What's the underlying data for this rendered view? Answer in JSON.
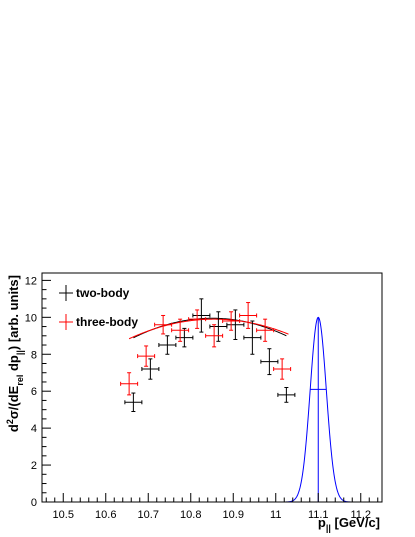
{
  "chart_data": {
    "type": "scatter",
    "xlabel_main": "p",
    "xlabel_sub": "||",
    "xlabel_unit": " [GeV/c]",
    "ylabel_parts": {
      "a": "d",
      "b": "2",
      "c": "σ/(dE",
      "d": "rel",
      "e": " dp",
      "f": "||",
      "g": ") [arb. units]"
    },
    "xlim": [
      10.45,
      11.25
    ],
    "ylim": [
      0,
      12.4
    ],
    "x_ticks": [
      10.5,
      10.6,
      10.7,
      10.8,
      10.9,
      11.0,
      11.1,
      11.2
    ],
    "x_tick_labels": [
      "10.5",
      "10.6",
      "10.7",
      "10.8",
      "10.9",
      "11",
      "11.1",
      "11.2"
    ],
    "y_ticks": [
      0,
      2,
      4,
      6,
      8,
      10,
      12
    ],
    "y_tick_labels": [
      "0",
      "2",
      "4",
      "6",
      "8",
      "10",
      "12"
    ],
    "legend": {
      "position": "top-left"
    },
    "series": [
      {
        "name": "two-body",
        "color": "#000000",
        "x": [
          10.665,
          10.705,
          10.745,
          10.785,
          10.825,
          10.865,
          10.905,
          10.945,
          10.985,
          11.025
        ],
        "y": [
          5.4,
          7.2,
          8.5,
          8.9,
          10.1,
          9.5,
          9.6,
          8.9,
          7.6,
          5.8
        ],
        "xerr": 0.02,
        "yerr": [
          0.5,
          0.55,
          0.5,
          0.5,
          0.9,
          0.8,
          0.8,
          0.9,
          0.7,
          0.4
        ],
        "fit": {
          "peak_x": 10.85,
          "peak_y": 9.95,
          "k": 31.0,
          "x_range": [
            10.665,
            11.025
          ]
        }
      },
      {
        "name": "three-body",
        "color": "#ff0000",
        "x": [
          10.655,
          10.695,
          10.735,
          10.775,
          10.815,
          10.855,
          10.895,
          10.935,
          10.975,
          11.015
        ],
        "y": [
          6.4,
          7.9,
          9.6,
          9.3,
          9.9,
          9.0,
          9.8,
          10.1,
          9.3,
          7.2
        ],
        "xerr": 0.02,
        "yerr": [
          0.6,
          0.55,
          0.5,
          0.6,
          0.5,
          0.6,
          0.5,
          0.7,
          0.6,
          0.55
        ],
        "fit": {
          "peak_x": 10.855,
          "peak_y": 9.9,
          "k": 26.5,
          "x_range": [
            10.655,
            11.03
          ]
        }
      },
      {
        "name": "",
        "color": "#0000ff",
        "type": "gaussian",
        "mean": 11.1,
        "sigma": 0.019,
        "amplitude": 10.0,
        "x_range": [
          11.0,
          11.2
        ],
        "fwhm_y": 6.1
      }
    ]
  },
  "legend_entries": [
    {
      "label": "two-body",
      "color": "#000000"
    },
    {
      "label": "three-body",
      "color": "#ff0000"
    }
  ]
}
